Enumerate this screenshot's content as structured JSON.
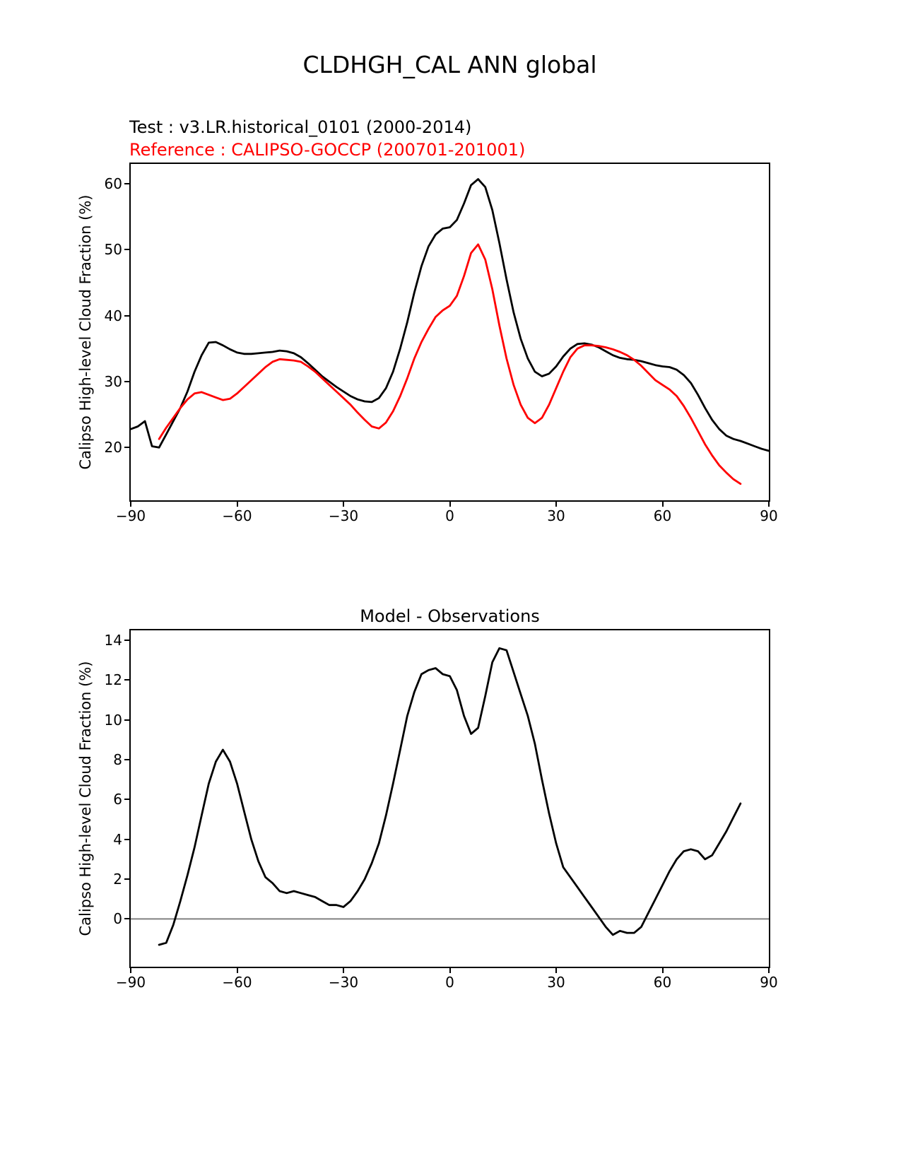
{
  "figure": {
    "title": "CLDHGH_CAL ANN global",
    "test_label": "Test : v3.LR.historical_0101 (2000-2014)",
    "reference_label": "Reference : CALIPSO-GOCCP (200701-201001)",
    "colors": {
      "test": "#000000",
      "reference": "#ff0000",
      "zero_line": "#808080"
    }
  },
  "chart_data": [
    {
      "type": "line",
      "title": "",
      "xlabel": "",
      "ylabel": "Calipso High-level Cloud Fraction (%)",
      "xlim": [
        -90,
        90
      ],
      "ylim": [
        12,
        63
      ],
      "xticks": [
        -90,
        -60,
        -30,
        0,
        30,
        60,
        90
      ],
      "xtick_labels": [
        "−90",
        "−60",
        "−30",
        "0",
        "30",
        "60",
        "90"
      ],
      "yticks": [
        20,
        30,
        40,
        50,
        60
      ],
      "ytick_labels": [
        "20",
        "30",
        "40",
        "50",
        "60"
      ],
      "grid": false,
      "legend_position": "above-left",
      "zero_line": false,
      "series": [
        {
          "id": "test-model-line",
          "name": "Test : v3.LR.historical_0101 (2000-2014)",
          "color": "#000000",
          "x": [
            -90,
            -88,
            -86,
            -84,
            -82,
            -80,
            -78,
            -76,
            -74,
            -72,
            -70,
            -68,
            -66,
            -64,
            -62,
            -60,
            -58,
            -56,
            -54,
            -52,
            -50,
            -48,
            -46,
            -44,
            -42,
            -40,
            -38,
            -36,
            -34,
            -32,
            -30,
            -28,
            -26,
            -24,
            -22,
            -20,
            -18,
            -16,
            -14,
            -12,
            -10,
            -8,
            -6,
            -4,
            -2,
            0,
            2,
            4,
            6,
            8,
            10,
            12,
            14,
            16,
            18,
            20,
            22,
            24,
            26,
            28,
            30,
            32,
            34,
            36,
            38,
            40,
            42,
            44,
            46,
            48,
            50,
            52,
            54,
            56,
            58,
            60,
            62,
            64,
            66,
            68,
            70,
            72,
            74,
            76,
            78,
            80,
            82,
            84,
            86,
            88,
            90
          ],
          "y": [
            22.8,
            23.2,
            24.0,
            20.2,
            20.0,
            22.0,
            24.0,
            26.0,
            28.5,
            31.5,
            34.0,
            35.9,
            36.0,
            35.5,
            34.9,
            34.4,
            34.2,
            34.2,
            34.3,
            34.4,
            34.5,
            34.7,
            34.6,
            34.3,
            33.7,
            32.8,
            31.8,
            30.8,
            30.0,
            29.2,
            28.5,
            27.8,
            27.3,
            27.0,
            26.9,
            27.5,
            29.0,
            31.5,
            35.0,
            39.0,
            43.5,
            47.5,
            50.5,
            52.3,
            53.2,
            53.4,
            54.5,
            57.0,
            59.8,
            60.7,
            59.5,
            56.0,
            51.0,
            45.5,
            40.5,
            36.5,
            33.5,
            31.5,
            30.8,
            31.2,
            32.3,
            33.8,
            35.0,
            35.7,
            35.8,
            35.6,
            35.2,
            34.6,
            34.0,
            33.6,
            33.4,
            33.3,
            33.1,
            32.8,
            32.5,
            32.3,
            32.2,
            31.8,
            31.0,
            29.8,
            28.0,
            26.0,
            24.2,
            22.8,
            21.8,
            21.3,
            21.0,
            20.6,
            20.2,
            19.8,
            19.5
          ]
        },
        {
          "id": "reference-obs-line",
          "name": "Reference : CALIPSO-GOCCP (200701-201001)",
          "color": "#ff0000",
          "x": [
            -82,
            -80,
            -78,
            -76,
            -74,
            -72,
            -70,
            -68,
            -66,
            -64,
            -62,
            -60,
            -58,
            -56,
            -54,
            -52,
            -50,
            -48,
            -46,
            -44,
            -42,
            -40,
            -38,
            -36,
            -34,
            -32,
            -30,
            -28,
            -26,
            -24,
            -22,
            -20,
            -18,
            -16,
            -14,
            -12,
            -10,
            -8,
            -6,
            -4,
            -2,
            0,
            2,
            4,
            6,
            8,
            10,
            12,
            14,
            16,
            18,
            20,
            22,
            24,
            26,
            28,
            30,
            32,
            34,
            36,
            38,
            40,
            42,
            44,
            46,
            48,
            50,
            52,
            54,
            56,
            58,
            60,
            62,
            64,
            66,
            68,
            70,
            72,
            74,
            76,
            78,
            80,
            82
          ],
          "y": [
            21.3,
            23.0,
            24.5,
            26.0,
            27.3,
            28.2,
            28.4,
            28.0,
            27.6,
            27.2,
            27.4,
            28.2,
            29.2,
            30.2,
            31.2,
            32.2,
            33.0,
            33.4,
            33.3,
            33.2,
            33.0,
            32.3,
            31.5,
            30.5,
            29.5,
            28.5,
            27.5,
            26.5,
            25.3,
            24.2,
            23.2,
            22.9,
            23.8,
            25.5,
            27.8,
            30.5,
            33.5,
            36.0,
            38.0,
            39.8,
            40.8,
            41.5,
            43.0,
            46.0,
            49.5,
            50.8,
            48.5,
            44.0,
            38.5,
            33.5,
            29.5,
            26.5,
            24.5,
            23.7,
            24.5,
            26.5,
            29.0,
            31.5,
            33.7,
            35.0,
            35.5,
            35.5,
            35.4,
            35.2,
            34.9,
            34.5,
            34.0,
            33.3,
            32.4,
            31.3,
            30.2,
            29.5,
            28.8,
            27.8,
            26.3,
            24.5,
            22.5,
            20.5,
            18.8,
            17.3,
            16.2,
            15.2,
            14.5
          ]
        }
      ]
    },
    {
      "type": "line",
      "title": "Model - Observations",
      "xlabel": "",
      "ylabel": "Calipso High-level Cloud Fraction (%)",
      "xlim": [
        -90,
        90
      ],
      "ylim": [
        -2.4,
        14.5
      ],
      "xticks": [
        -90,
        -60,
        -30,
        0,
        30,
        60,
        90
      ],
      "xtick_labels": [
        "−90",
        "−60",
        "−30",
        "0",
        "30",
        "60",
        "90"
      ],
      "yticks": [
        0,
        2,
        4,
        6,
        8,
        10,
        12,
        14
      ],
      "ytick_labels": [
        "0",
        "2",
        "4",
        "6",
        "8",
        "10",
        "12",
        "14"
      ],
      "grid": false,
      "zero_line": true,
      "series": [
        {
          "id": "difference-line",
          "name": "Model - Observations",
          "color": "#000000",
          "x": [
            -82,
            -80,
            -78,
            -76,
            -74,
            -72,
            -70,
            -68,
            -66,
            -64,
            -62,
            -60,
            -58,
            -56,
            -54,
            -52,
            -50,
            -48,
            -46,
            -44,
            -42,
            -40,
            -38,
            -36,
            -34,
            -32,
            -30,
            -28,
            -26,
            -24,
            -22,
            -20,
            -18,
            -16,
            -14,
            -12,
            -10,
            -8,
            -6,
            -4,
            -2,
            0,
            2,
            4,
            6,
            8,
            10,
            12,
            14,
            16,
            18,
            20,
            22,
            24,
            26,
            28,
            30,
            32,
            34,
            36,
            38,
            40,
            42,
            44,
            46,
            48,
            50,
            52,
            54,
            56,
            58,
            60,
            62,
            64,
            66,
            68,
            70,
            72,
            74,
            76,
            78,
            80,
            82
          ],
          "y": [
            -1.3,
            -1.2,
            -0.3,
            0.9,
            2.2,
            3.6,
            5.2,
            6.8,
            7.9,
            8.5,
            7.9,
            6.8,
            5.4,
            4.0,
            2.9,
            2.1,
            1.8,
            1.4,
            1.3,
            1.4,
            1.3,
            1.2,
            1.1,
            0.9,
            0.7,
            0.7,
            0.6,
            0.9,
            1.4,
            2.0,
            2.8,
            3.8,
            5.2,
            6.8,
            8.5,
            10.2,
            11.4,
            12.3,
            12.5,
            12.6,
            12.3,
            12.2,
            11.5,
            10.2,
            9.3,
            9.6,
            11.2,
            12.9,
            13.6,
            13.5,
            12.4,
            11.3,
            10.2,
            8.8,
            7.0,
            5.3,
            3.8,
            2.6,
            2.1,
            1.6,
            1.1,
            0.6,
            0.1,
            -0.4,
            -0.8,
            -0.6,
            -0.7,
            -0.7,
            -0.4,
            0.3,
            1.0,
            1.7,
            2.4,
            3.0,
            3.4,
            3.5,
            3.4,
            3.0,
            3.2,
            3.8,
            4.4,
            5.1,
            5.8
          ]
        }
      ]
    }
  ]
}
